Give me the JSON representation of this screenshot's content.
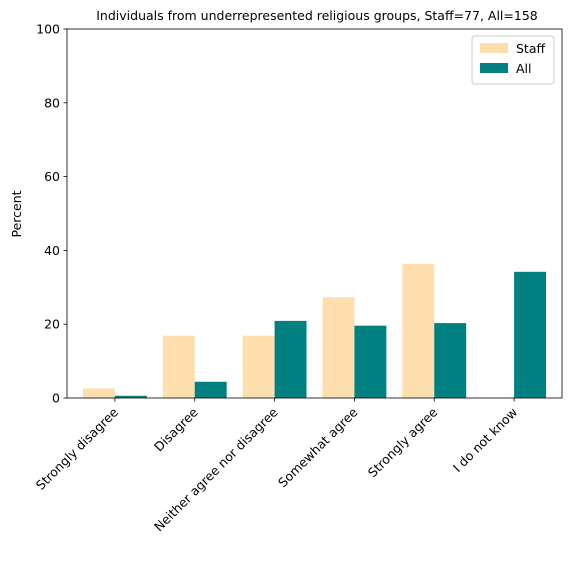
{
  "chart_data": {
    "type": "bar",
    "title": "Individuals from underrepresented religious groups, Staff=77, All=158",
    "xlabel": "",
    "ylabel": "Percent",
    "ylim": [
      0,
      100
    ],
    "yticks": [
      0,
      20,
      40,
      60,
      80,
      100
    ],
    "grid": false,
    "legend_position": "top-right",
    "categories": [
      "Strongly disagree",
      "Disagree",
      "Neither agree nor disagree",
      "Somewhat agree",
      "Strongly agree",
      "I do not know"
    ],
    "series": [
      {
        "name": "Staff",
        "color": "#ffdead",
        "values": [
          2.6,
          16.9,
          16.9,
          27.3,
          36.4,
          0.0
        ]
      },
      {
        "name": "All",
        "color": "#008080",
        "values": [
          0.6,
          4.4,
          20.9,
          19.6,
          20.3,
          34.2
        ]
      }
    ]
  }
}
